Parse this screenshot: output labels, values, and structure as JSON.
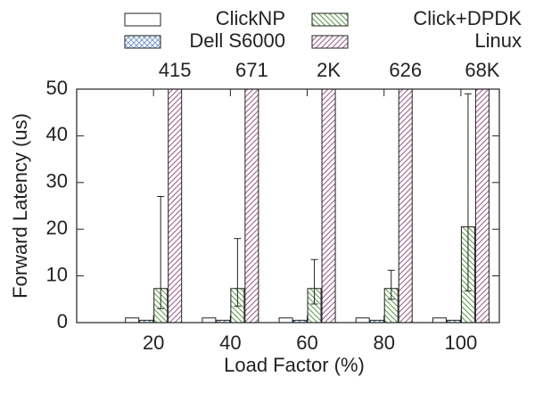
{
  "chart_data": {
    "type": "bar",
    "x_label": "Load Factor (%)",
    "y_label": "Forward Latency (us)",
    "x": [
      20,
      40,
      60,
      80,
      100
    ],
    "xlim": [
      0,
      110
    ],
    "xticks": [
      20,
      40,
      60,
      80,
      100
    ],
    "ylim": [
      0,
      50
    ],
    "yticks": [
      0,
      10,
      20,
      30,
      40,
      50
    ],
    "grid": false,
    "series": [
      {
        "name": "ClickNP",
        "color": "#222222",
        "pattern": "none",
        "values": [
          1,
          1,
          1,
          1,
          1
        ]
      },
      {
        "name": "Dell S6000",
        "color": "#7a9cc6",
        "pattern": "cross",
        "values": [
          0.5,
          0.5,
          0.5,
          0.5,
          0.5
        ]
      },
      {
        "name": "Click+DPDK",
        "color": "#5a9a4a",
        "pattern": "back-diagonal",
        "values": [
          7.3,
          7.3,
          7.3,
          7.3,
          20.5
        ],
        "err_minus": [
          4.3,
          3.8,
          3.3,
          2.3,
          13.7
        ],
        "err_plus": [
          19.7,
          10.7,
          6.2,
          3.9,
          28.5
        ]
      },
      {
        "name": "Linux",
        "color": "#9a5a8a",
        "pattern": "diagonal",
        "values": [
          415,
          671,
          2000,
          626,
          68000
        ],
        "value_labels": [
          "415",
          "671",
          "2K",
          "626",
          "68K"
        ]
      }
    ]
  }
}
